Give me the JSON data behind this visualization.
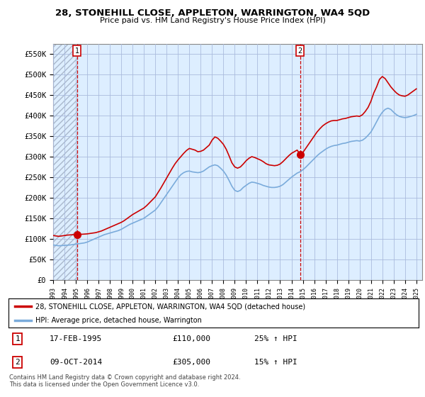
{
  "title": "28, STONEHILL CLOSE, APPLETON, WARRINGTON, WA4 5QD",
  "subtitle": "Price paid vs. HM Land Registry's House Price Index (HPI)",
  "ylim": [
    0,
    575000
  ],
  "xlim_start": 1993.0,
  "xlim_end": 2025.5,
  "sale1_x": 1995.12,
  "sale1_y": 110000,
  "sale1_label": "1",
  "sale2_x": 2014.77,
  "sale2_y": 305000,
  "sale2_label": "2",
  "legend_line1": "28, STONEHILL CLOSE, APPLETON, WARRINGTON, WA4 5QD (detached house)",
  "legend_line2": "HPI: Average price, detached house, Warrington",
  "ann1_date": "17-FEB-1995",
  "ann1_price": "£110,000",
  "ann1_hpi": "25% ↑ HPI",
  "ann2_date": "09-OCT-2014",
  "ann2_price": "£305,000",
  "ann2_hpi": "15% ↑ HPI",
  "footer": "Contains HM Land Registry data © Crown copyright and database right 2024.\nThis data is licensed under the Open Government Licence v3.0.",
  "red_color": "#cc0000",
  "blue_color": "#7aabdb",
  "chart_bg": "#ddeeff",
  "hatch_color": "#c0c8d8",
  "grid_color": "#aabbcc",
  "hpi_x": [
    1993.0,
    1993.25,
    1993.5,
    1993.75,
    1994.0,
    1994.25,
    1994.5,
    1994.75,
    1995.0,
    1995.25,
    1995.5,
    1995.75,
    1996.0,
    1996.25,
    1996.5,
    1996.75,
    1997.0,
    1997.25,
    1997.5,
    1997.75,
    1998.0,
    1998.25,
    1998.5,
    1998.75,
    1999.0,
    1999.25,
    1999.5,
    1999.75,
    2000.0,
    2000.25,
    2000.5,
    2000.75,
    2001.0,
    2001.25,
    2001.5,
    2001.75,
    2002.0,
    2002.25,
    2002.5,
    2002.75,
    2003.0,
    2003.25,
    2003.5,
    2003.75,
    2004.0,
    2004.25,
    2004.5,
    2004.75,
    2005.0,
    2005.25,
    2005.5,
    2005.75,
    2006.0,
    2006.25,
    2006.5,
    2006.75,
    2007.0,
    2007.25,
    2007.5,
    2007.75,
    2008.0,
    2008.25,
    2008.5,
    2008.75,
    2009.0,
    2009.25,
    2009.5,
    2009.75,
    2010.0,
    2010.25,
    2010.5,
    2010.75,
    2011.0,
    2011.25,
    2011.5,
    2011.75,
    2012.0,
    2012.25,
    2012.5,
    2012.75,
    2013.0,
    2013.25,
    2013.5,
    2013.75,
    2014.0,
    2014.25,
    2014.5,
    2014.75,
    2015.0,
    2015.25,
    2015.5,
    2015.75,
    2016.0,
    2016.25,
    2016.5,
    2016.75,
    2017.0,
    2017.25,
    2017.5,
    2017.75,
    2018.0,
    2018.25,
    2018.5,
    2018.75,
    2019.0,
    2019.25,
    2019.5,
    2019.75,
    2020.0,
    2020.25,
    2020.5,
    2020.75,
    2021.0,
    2021.25,
    2021.5,
    2021.75,
    2022.0,
    2022.25,
    2022.5,
    2022.75,
    2023.0,
    2023.25,
    2023.5,
    2023.75,
    2024.0,
    2024.25,
    2024.5,
    2024.75,
    2025.0
  ],
  "hpi_y": [
    85000,
    84000,
    83000,
    83500,
    84000,
    84500,
    85000,
    86000,
    87000,
    88000,
    89000,
    90000,
    92000,
    95000,
    98000,
    101000,
    104000,
    107000,
    110000,
    112000,
    114000,
    116000,
    118000,
    120000,
    123000,
    127000,
    131000,
    135000,
    138000,
    141000,
    144000,
    147000,
    150000,
    155000,
    160000,
    165000,
    170000,
    178000,
    188000,
    198000,
    208000,
    218000,
    228000,
    238000,
    248000,
    256000,
    261000,
    264000,
    265000,
    263000,
    262000,
    261000,
    262000,
    265000,
    270000,
    275000,
    278000,
    280000,
    278000,
    272000,
    265000,
    255000,
    242000,
    228000,
    218000,
    215000,
    218000,
    225000,
    230000,
    235000,
    238000,
    237000,
    235000,
    233000,
    230000,
    228000,
    226000,
    225000,
    225000,
    226000,
    228000,
    232000,
    238000,
    244000,
    250000,
    255000,
    260000,
    263000,
    268000,
    274000,
    281000,
    288000,
    295000,
    302000,
    308000,
    313000,
    318000,
    322000,
    325000,
    327000,
    328000,
    330000,
    332000,
    333000,
    335000,
    337000,
    338000,
    339000,
    338000,
    340000,
    345000,
    352000,
    360000,
    372000,
    385000,
    398000,
    408000,
    415000,
    418000,
    415000,
    408000,
    402000,
    398000,
    396000,
    395000,
    396000,
    398000,
    400000,
    403000
  ],
  "price_x": [
    1993.0,
    1993.25,
    1993.5,
    1993.75,
    1994.0,
    1994.25,
    1994.5,
    1994.75,
    1995.0,
    1995.12,
    1995.25,
    1995.5,
    1995.75,
    1996.0,
    1996.25,
    1996.5,
    1996.75,
    1997.0,
    1997.25,
    1997.5,
    1997.75,
    1998.0,
    1998.25,
    1998.5,
    1998.75,
    1999.0,
    1999.25,
    1999.5,
    1999.75,
    2000.0,
    2000.25,
    2000.5,
    2000.75,
    2001.0,
    2001.25,
    2001.5,
    2001.75,
    2002.0,
    2002.25,
    2002.5,
    2002.75,
    2003.0,
    2003.25,
    2003.5,
    2003.75,
    2004.0,
    2004.25,
    2004.5,
    2004.75,
    2005.0,
    2005.25,
    2005.5,
    2005.75,
    2006.0,
    2006.25,
    2006.5,
    2006.75,
    2007.0,
    2007.25,
    2007.5,
    2007.75,
    2008.0,
    2008.25,
    2008.5,
    2008.75,
    2009.0,
    2009.25,
    2009.5,
    2009.75,
    2010.0,
    2010.25,
    2010.5,
    2010.75,
    2011.0,
    2011.25,
    2011.5,
    2011.75,
    2012.0,
    2012.25,
    2012.5,
    2012.75,
    2013.0,
    2013.25,
    2013.5,
    2013.75,
    2014.0,
    2014.25,
    2014.5,
    2014.77,
    2015.0,
    2015.25,
    2015.5,
    2015.75,
    2016.0,
    2016.25,
    2016.5,
    2016.75,
    2017.0,
    2017.25,
    2017.5,
    2017.75,
    2018.0,
    2018.25,
    2018.5,
    2018.75,
    2019.0,
    2019.25,
    2019.5,
    2019.75,
    2020.0,
    2020.25,
    2020.5,
    2020.75,
    2021.0,
    2021.25,
    2021.5,
    2021.75,
    2022.0,
    2022.25,
    2022.5,
    2022.75,
    2023.0,
    2023.25,
    2023.5,
    2023.75,
    2024.0,
    2024.25,
    2024.5,
    2024.75,
    2025.0
  ],
  "price_y": [
    108000,
    107000,
    106000,
    107000,
    108000,
    109000,
    109500,
    110000,
    110000,
    110000,
    110500,
    111000,
    111500,
    112000,
    113000,
    114000,
    115000,
    117000,
    119000,
    122000,
    125000,
    128000,
    131000,
    134000,
    137000,
    140000,
    144000,
    149000,
    154000,
    159000,
    163000,
    167000,
    171000,
    175000,
    181000,
    188000,
    195000,
    202000,
    213000,
    224000,
    236000,
    248000,
    260000,
    272000,
    283000,
    292000,
    300000,
    308000,
    315000,
    320000,
    318000,
    316000,
    312000,
    313000,
    316000,
    322000,
    328000,
    340000,
    348000,
    345000,
    338000,
    330000,
    318000,
    302000,
    285000,
    275000,
    272000,
    275000,
    282000,
    290000,
    296000,
    300000,
    298000,
    295000,
    292000,
    288000,
    283000,
    280000,
    279000,
    278000,
    279000,
    282000,
    288000,
    295000,
    302000,
    308000,
    312000,
    316000,
    305000,
    310000,
    320000,
    330000,
    340000,
    350000,
    360000,
    368000,
    375000,
    380000,
    384000,
    387000,
    388000,
    388000,
    390000,
    392000,
    393000,
    395000,
    397000,
    398000,
    399000,
    398000,
    402000,
    410000,
    420000,
    435000,
    455000,
    470000,
    488000,
    495000,
    490000,
    480000,
    470000,
    462000,
    455000,
    450000,
    448000,
    447000,
    450000,
    455000,
    460000,
    465000
  ]
}
